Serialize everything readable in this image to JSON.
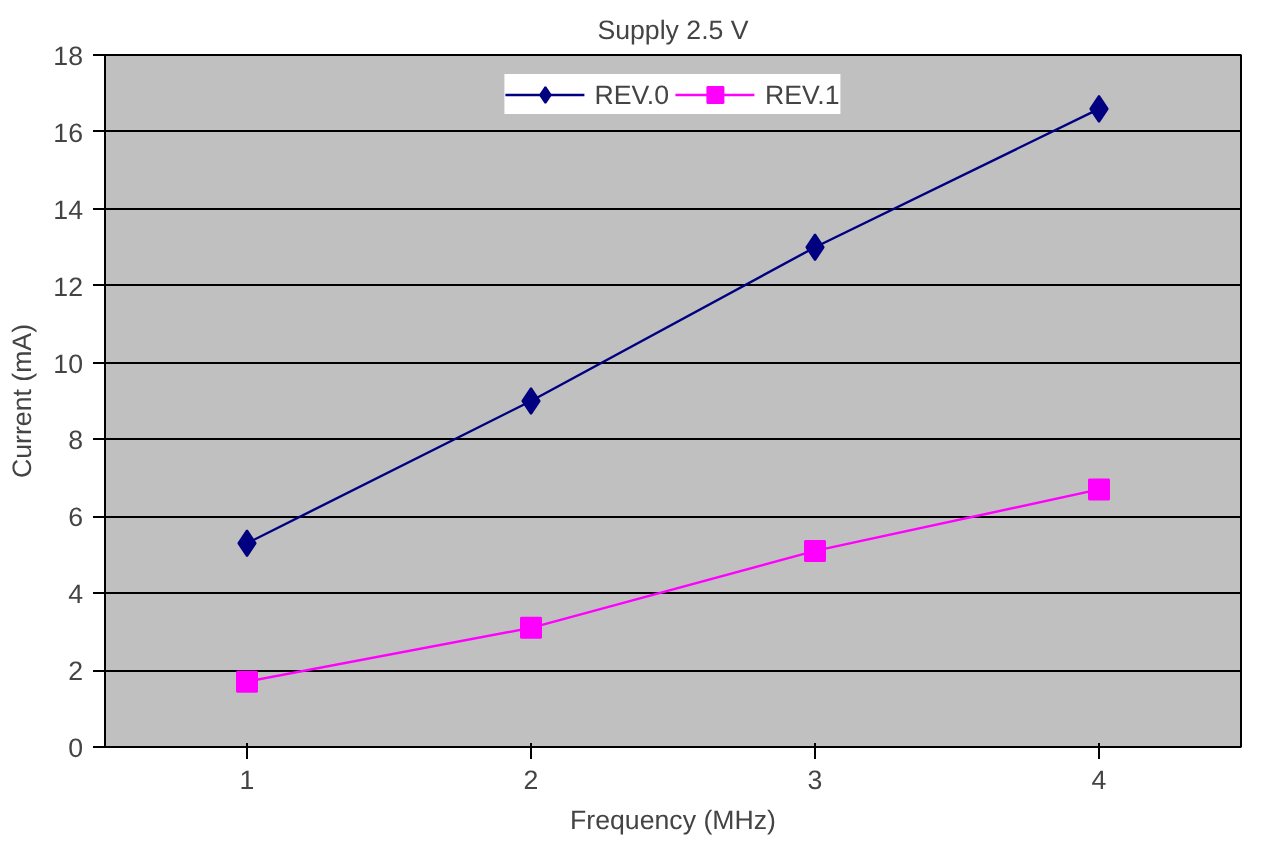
{
  "chart_data": {
    "type": "line",
    "title": "Supply 2.5 V",
    "xlabel": "Frequency (MHz)",
    "ylabel": "Current (mA)",
    "categories": [
      "1",
      "2",
      "3",
      "4"
    ],
    "series": [
      {
        "name": "REV.0",
        "color": "#000080",
        "marker": "diamond",
        "values": [
          5.3,
          9.0,
          13.0,
          16.6
        ]
      },
      {
        "name": "REV.1",
        "color": "#ff00ff",
        "marker": "square",
        "values": [
          1.7,
          3.1,
          5.1,
          6.7
        ]
      }
    ],
    "ylim": [
      0,
      18
    ],
    "yticks": [
      0,
      2,
      4,
      6,
      8,
      10,
      12,
      14,
      16,
      18
    ],
    "grid": "y",
    "legend": "top",
    "line_style": "solid"
  }
}
